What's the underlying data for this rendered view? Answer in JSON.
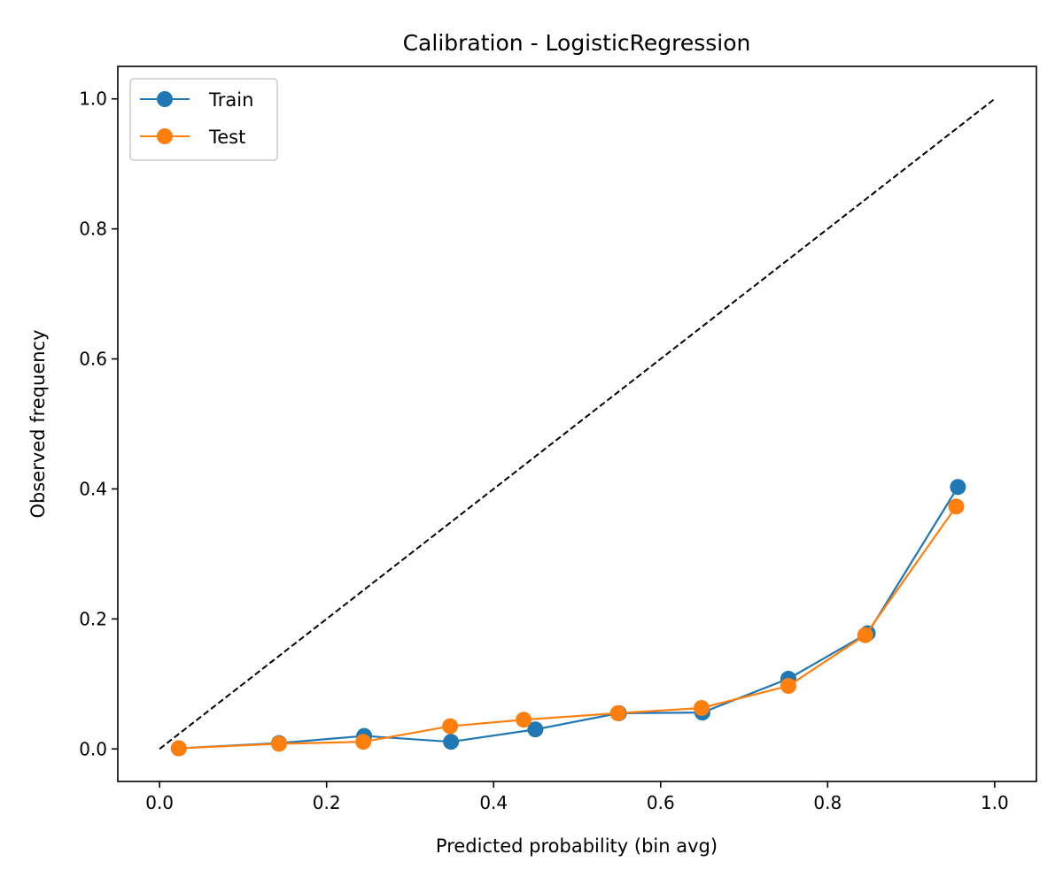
{
  "chart_data": {
    "type": "line",
    "title": "Calibration - LogisticRegression",
    "xlabel": "Predicted probability (bin avg)",
    "ylabel": "Observed frequency",
    "xlim": [
      -0.05,
      1.05
    ],
    "ylim": [
      -0.05,
      1.05
    ],
    "xticks": [
      0.0,
      0.2,
      0.4,
      0.6,
      0.8,
      1.0
    ],
    "xtick_labels": [
      "0.0",
      "0.2",
      "0.4",
      "0.6",
      "0.8",
      "1.0"
    ],
    "yticks": [
      0.0,
      0.2,
      0.4,
      0.6,
      0.8,
      1.0
    ],
    "ytick_labels": [
      "0.0",
      "0.2",
      "0.4",
      "0.6",
      "0.8",
      "1.0"
    ],
    "grid": false,
    "legend_position": "upper-left",
    "reference_line": {
      "style": "dashed",
      "color": "#000000",
      "x": [
        0.0,
        1.0
      ],
      "y": [
        0.0,
        1.0
      ]
    },
    "series": [
      {
        "name": "Train",
        "color": "#1f77b4",
        "marker": "circle",
        "x": [
          0.023,
          0.143,
          0.245,
          0.349,
          0.45,
          0.55,
          0.65,
          0.753,
          0.848,
          0.956
        ],
        "y": [
          0.001,
          0.009,
          0.02,
          0.011,
          0.03,
          0.055,
          0.056,
          0.108,
          0.178,
          0.403
        ]
      },
      {
        "name": "Test",
        "color": "#ff7f0e",
        "marker": "circle",
        "x": [
          0.023,
          0.143,
          0.244,
          0.348,
          0.436,
          0.549,
          0.649,
          0.753,
          0.845,
          0.954
        ],
        "y": [
          0.001,
          0.008,
          0.011,
          0.035,
          0.045,
          0.055,
          0.063,
          0.097,
          0.175,
          0.373
        ]
      }
    ]
  }
}
